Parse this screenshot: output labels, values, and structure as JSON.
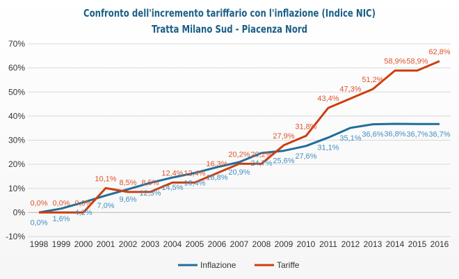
{
  "chart_data": {
    "type": "line",
    "title": "Confronto dell'incremento tariffario con l'inflazione (Indice NIC)",
    "subtitle": "Tratta Milano Sud - Piacenza Nord",
    "x": [
      "1998",
      "1999",
      "2000",
      "2001",
      "2002",
      "2003",
      "2004",
      "2005",
      "2006",
      "2007",
      "2008",
      "2009",
      "2010",
      "2011",
      "2012",
      "2013",
      "2014",
      "2015",
      "2016"
    ],
    "ylim": [
      -10,
      70
    ],
    "yticks": [
      -10,
      0,
      10,
      20,
      30,
      40,
      50,
      60,
      70
    ],
    "ytick_labels": [
      "-10%",
      "0%",
      "10%",
      "20%",
      "30%",
      "40%",
      "50%",
      "60%",
      "70%"
    ],
    "grid": true,
    "legend": "bottom",
    "series": [
      {
        "name": "Inflazione",
        "color": "#1f6e9a",
        "label_color": "#3f8fbf",
        "values": [
          0.0,
          1.6,
          4.2,
          7.0,
          9.6,
          12.3,
          14.5,
          16.4,
          18.8,
          20.9,
          24.7,
          25.6,
          27.6,
          31.1,
          35.1,
          36.6,
          36.8,
          36.7,
          36.7
        ],
        "labels": [
          "0,0%",
          "1,6%",
          "4,2%",
          "7,0%",
          "9,6%",
          "12,3%",
          "14,5%",
          "16,4%",
          "18,8%",
          "20,9%",
          "24,7%",
          "25,6%",
          "27,6%",
          "31,1%",
          "35,1%",
          "36,6%",
          "36,8%",
          "36,7%",
          "36,7%"
        ]
      },
      {
        "name": "Tariffe",
        "color": "#cc3e10",
        "label_color": "#e0522b",
        "values": [
          0.0,
          0.0,
          0.0,
          10.1,
          8.5,
          8.5,
          12.4,
          12.4,
          16.3,
          20.2,
          20.2,
          27.9,
          31.8,
          43.4,
          47.3,
          51.2,
          58.9,
          58.9,
          62.8
        ],
        "labels": [
          "0,0%",
          "0,0%",
          "0,0%",
          "10,1%",
          "8,5%",
          "8,5%",
          "12,4%",
          "12,4%",
          "16,3%",
          "20,2%",
          "20,2%",
          "27,9%",
          "31,8%",
          "43,4%",
          "47,3%",
          "51,2%",
          "58,9%",
          "58,9%",
          "62,8%"
        ]
      }
    ]
  }
}
